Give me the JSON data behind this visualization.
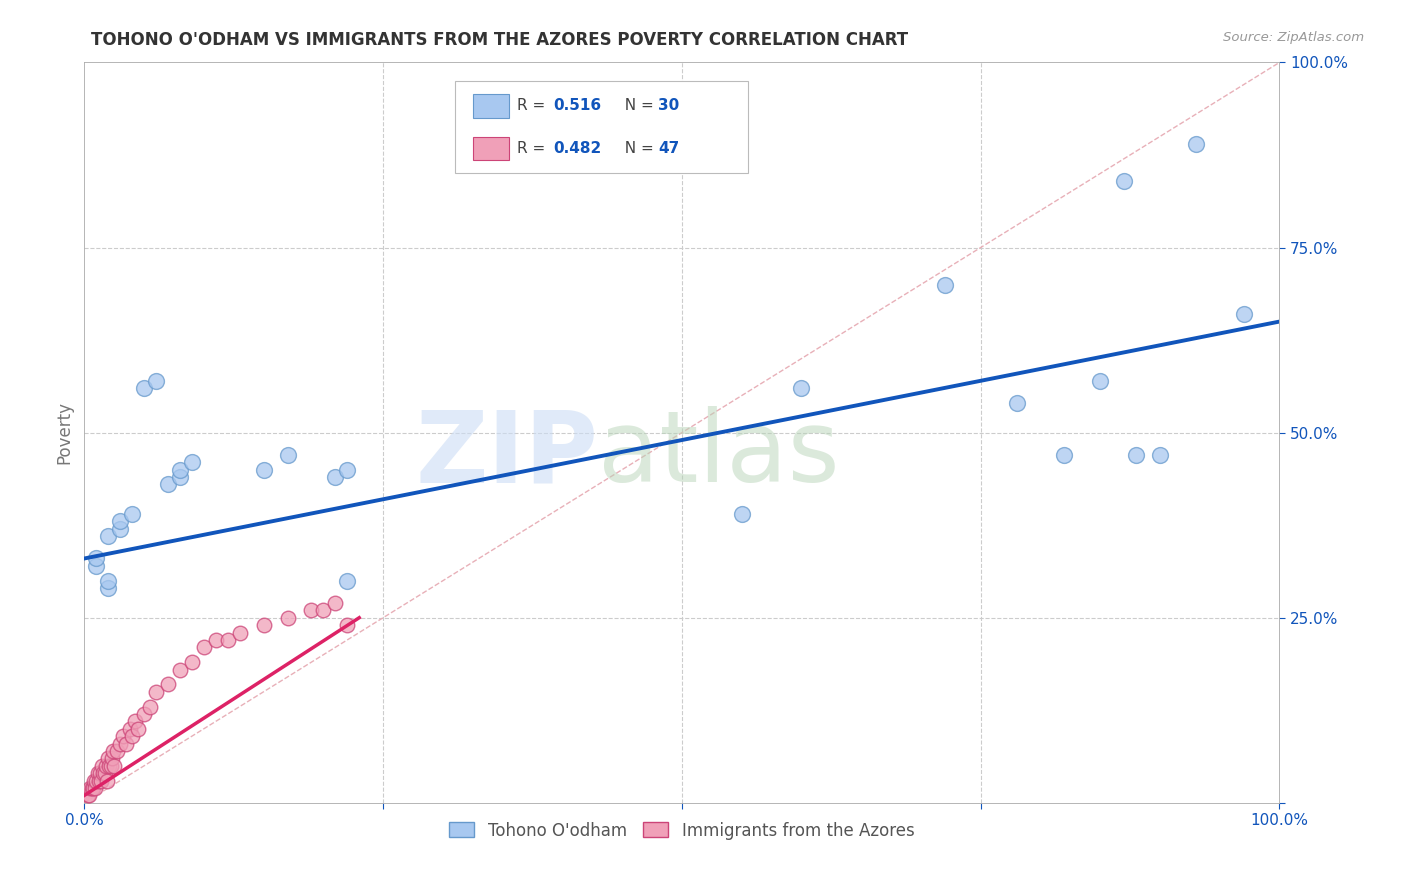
{
  "title": "TOHONO O'ODHAM VS IMMIGRANTS FROM THE AZORES POVERTY CORRELATION CHART",
  "source": "Source: ZipAtlas.com",
  "ylabel": "Poverty",
  "xlim": [
    0,
    1.0
  ],
  "ylim": [
    0,
    1.0
  ],
  "background_color": "#ffffff",
  "grid_color": "#cccccc",
  "blue_points_x": [
    0.01,
    0.01,
    0.02,
    0.02,
    0.02,
    0.03,
    0.03,
    0.04,
    0.05,
    0.06,
    0.07,
    0.08,
    0.08,
    0.09,
    0.15,
    0.17,
    0.21,
    0.22,
    0.22,
    0.55,
    0.6,
    0.72,
    0.78,
    0.82,
    0.85,
    0.87,
    0.88,
    0.9,
    0.93,
    0.97
  ],
  "blue_points_y": [
    0.32,
    0.33,
    0.29,
    0.3,
    0.36,
    0.37,
    0.38,
    0.39,
    0.56,
    0.57,
    0.43,
    0.44,
    0.45,
    0.46,
    0.45,
    0.47,
    0.44,
    0.45,
    0.3,
    0.39,
    0.56,
    0.7,
    0.54,
    0.47,
    0.57,
    0.84,
    0.47,
    0.47,
    0.89,
    0.66
  ],
  "pink_points_x": [
    0.003,
    0.004,
    0.005,
    0.006,
    0.007,
    0.008,
    0.009,
    0.01,
    0.011,
    0.012,
    0.013,
    0.014,
    0.015,
    0.016,
    0.017,
    0.018,
    0.019,
    0.02,
    0.021,
    0.022,
    0.023,
    0.024,
    0.025,
    0.027,
    0.03,
    0.032,
    0.035,
    0.038,
    0.04,
    0.042,
    0.045,
    0.05,
    0.055,
    0.06,
    0.07,
    0.08,
    0.09,
    0.1,
    0.11,
    0.12,
    0.13,
    0.15,
    0.17,
    0.19,
    0.2,
    0.21,
    0.22
  ],
  "pink_points_y": [
    0.01,
    0.01,
    0.02,
    0.02,
    0.02,
    0.03,
    0.02,
    0.03,
    0.04,
    0.03,
    0.04,
    0.03,
    0.05,
    0.04,
    0.04,
    0.05,
    0.03,
    0.06,
    0.05,
    0.05,
    0.06,
    0.07,
    0.05,
    0.07,
    0.08,
    0.09,
    0.08,
    0.1,
    0.09,
    0.11,
    0.1,
    0.12,
    0.13,
    0.15,
    0.16,
    0.18,
    0.19,
    0.21,
    0.22,
    0.22,
    0.23,
    0.24,
    0.25,
    0.26,
    0.26,
    0.27,
    0.24
  ],
  "blue_R": "0.516",
  "blue_N": "30",
  "pink_R": "0.482",
  "pink_N": "47",
  "blue_line_x0": 0.0,
  "blue_line_x1": 1.0,
  "blue_line_y0": 0.33,
  "blue_line_y1": 0.65,
  "pink_line_x0": 0.0,
  "pink_line_x1": 0.23,
  "pink_line_y0": 0.01,
  "pink_line_y1": 0.25,
  "blue_color": "#a8c8f0",
  "blue_edge_color": "#6699cc",
  "blue_line_color": "#1155bb",
  "pink_color": "#f0a0b8",
  "pink_edge_color": "#cc4477",
  "pink_line_color": "#dd2266",
  "diagonal_color": "#e8b0b8",
  "legend_label_blue": "Tohono O'odham",
  "legend_label_pink": "Immigrants from the Azores",
  "accent_color": "#1155bb"
}
